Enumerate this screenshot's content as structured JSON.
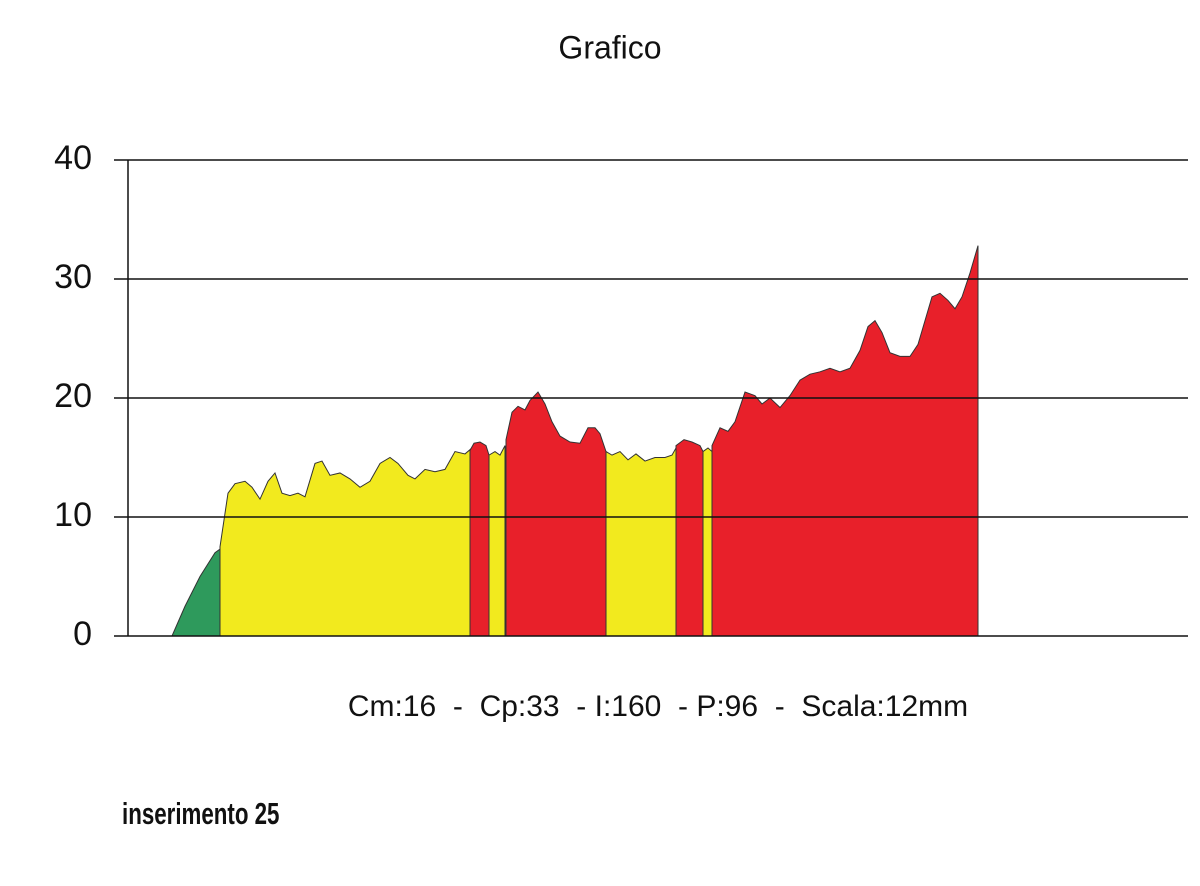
{
  "chart_data": {
    "type": "area",
    "title": "Grafico",
    "annotations": [
      "Cm:16  -  Cp:33  - I:160  - P:96  -  Scala:12mm",
      "inserimento 25"
    ],
    "xlim": [
      0,
      1060
    ],
    "ylim": [
      0,
      40
    ],
    "yticks": [
      0,
      10,
      20,
      30,
      40
    ],
    "grid": true,
    "series": [
      {
        "color": "#2e9a5c",
        "x": [
          44,
          57,
          72,
          87,
          92
        ],
        "values": [
          0,
          2.5,
          5,
          7,
          7.3
        ]
      },
      {
        "color": "#f2ea1e",
        "x": [
          92,
          100,
          107,
          117,
          124,
          132,
          140,
          147,
          154,
          162,
          170,
          177,
          187,
          194,
          202,
          212,
          222,
          232,
          242,
          252,
          262,
          270,
          280,
          287,
          297,
          307,
          317,
          327,
          337,
          344
        ],
        "values": [
          7.5,
          12,
          12.8,
          13,
          12.5,
          11.5,
          13,
          13.7,
          12,
          11.8,
          12,
          11.7,
          14.5,
          14.7,
          13.5,
          13.7,
          13.2,
          12.5,
          13,
          14.5,
          15,
          14.5,
          13.5,
          13.2,
          14,
          13.8,
          14,
          15.5,
          15.3,
          15.8
        ]
      },
      {
        "color": "#e8202a",
        "x": [
          342,
          346,
          352,
          358,
          361
        ],
        "values": [
          15.6,
          16.2,
          16.3,
          16,
          15.2
        ]
      },
      {
        "color": "#f2ea1e",
        "x": [
          361,
          367,
          372,
          377
        ],
        "values": [
          15.2,
          15.5,
          15.2,
          16
        ]
      },
      {
        "color": "#e8202a",
        "x": [
          378,
          384,
          390,
          397,
          402,
          410,
          417,
          424,
          432,
          442,
          452,
          460,
          467,
          472,
          478
        ],
        "values": [
          16.5,
          18.8,
          19.3,
          19,
          19.8,
          20.5,
          19.5,
          18,
          16.8,
          16.3,
          16.2,
          17.5,
          17.5,
          17,
          15.5
        ]
      },
      {
        "color": "#f2ea1e",
        "x": [
          478,
          484,
          492,
          500,
          508,
          517,
          527,
          537,
          544,
          548
        ],
        "values": [
          15.5,
          15.2,
          15.5,
          14.8,
          15.3,
          14.7,
          15,
          15,
          15.2,
          15.8
        ]
      },
      {
        "color": "#e8202a",
        "x": [
          548,
          556,
          564,
          572,
          575
        ],
        "values": [
          16,
          16.5,
          16.3,
          16,
          15.5
        ]
      },
      {
        "color": "#f2ea1e",
        "x": [
          575,
          580,
          584
        ],
        "values": [
          15.5,
          15.8,
          15.5
        ]
      },
      {
        "color": "#e8202a",
        "x": [
          584,
          592,
          600,
          607,
          617,
          627,
          634,
          642,
          652,
          662,
          672,
          682,
          692,
          702,
          712,
          722,
          732,
          740,
          747,
          754,
          762,
          772,
          782,
          790,
          797,
          804,
          812,
          820,
          827,
          834,
          842,
          850
        ],
        "values": [
          16,
          17.5,
          17.2,
          18,
          20.5,
          20.2,
          19.5,
          20,
          19.2,
          20.2,
          21.5,
          22,
          22.2,
          22.5,
          22.2,
          22.5,
          24,
          26,
          26.5,
          25.5,
          23.8,
          23.5,
          23.5,
          24.5,
          26.5,
          28.5,
          28.8,
          28.2,
          27.5,
          28.5,
          30.5,
          32.8
        ]
      }
    ]
  }
}
